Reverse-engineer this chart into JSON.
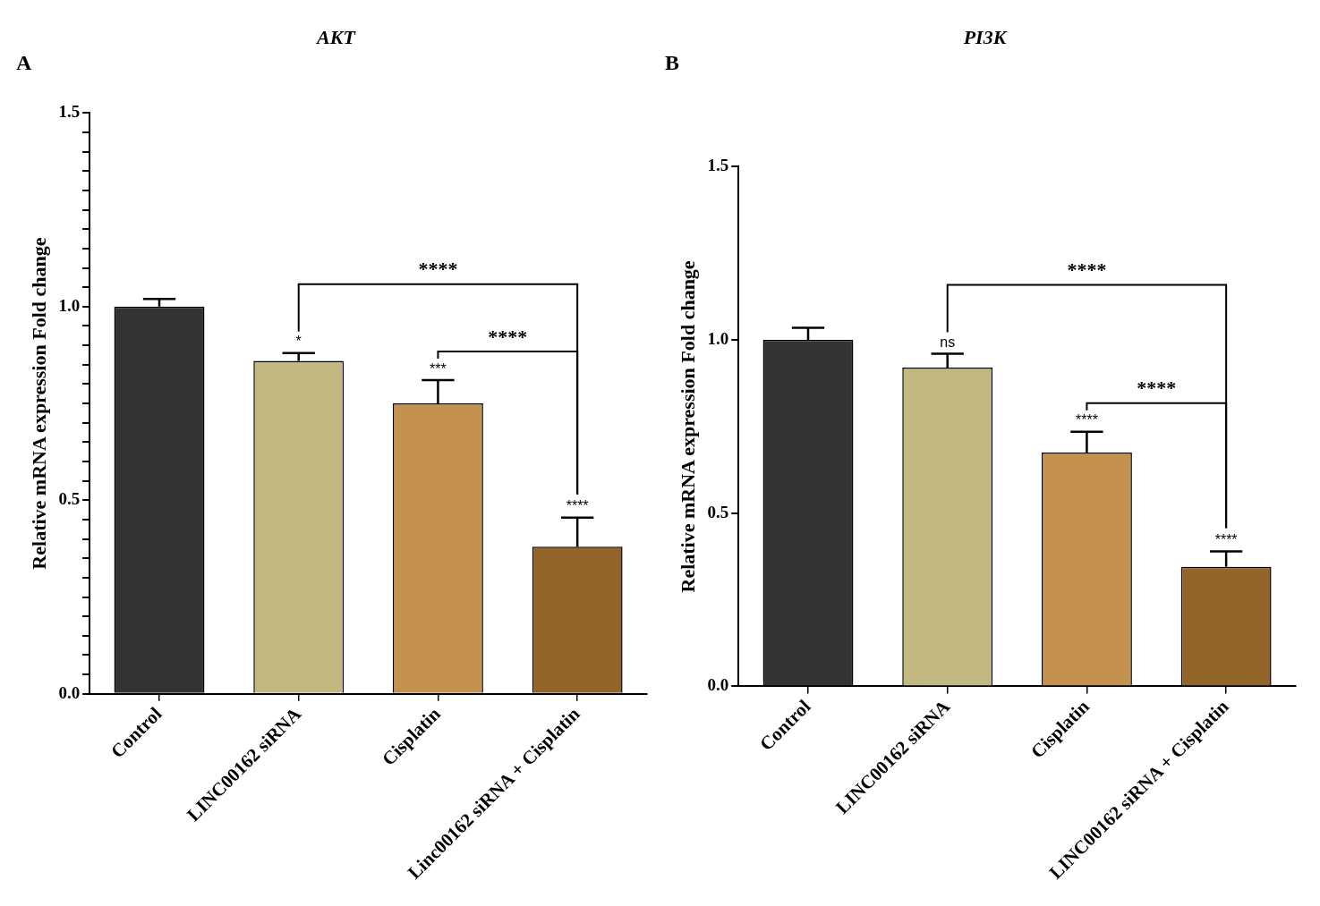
{
  "chart_data": [
    {
      "type": "bar",
      "title": "AKT",
      "ylabel": "Relative mRNA expression Fold change",
      "categories": [
        "Control",
        "LINC00162 siRNA",
        "Cisplatin",
        "Linc00162 siRNA + Cisplatin"
      ],
      "values": [
        1.0,
        0.86,
        0.75,
        0.38
      ],
      "errors": [
        [
          1.0,
          1.02
        ],
        [
          0.86,
          0.88
        ],
        [
          0.75,
          0.81
        ],
        [
          0.38,
          0.455
        ]
      ],
      "colors": [
        "#333333",
        "#c3b980",
        "#c4914f",
        "#93652a"
      ],
      "ylim": [
        0,
        1.5
      ],
      "yticks": [
        {
          "value": 0,
          "label": "0.0"
        },
        {
          "value": 0.05,
          "label": null
        },
        {
          "value": 0.1,
          "label": null
        },
        {
          "value": 0.15,
          "label": null
        },
        {
          "value": 0.2,
          "label": null
        },
        {
          "value": 0.25,
          "label": null
        },
        {
          "value": 0.3,
          "label": null
        },
        {
          "value": 0.35,
          "label": null
        },
        {
          "value": 0.4,
          "label": null
        },
        {
          "value": 0.45,
          "label": null
        },
        {
          "value": 0.5,
          "label": "0.5"
        },
        {
          "value": 0.55,
          "label": null
        },
        {
          "value": 0.6,
          "label": null
        },
        {
          "value": 0.65,
          "label": null
        },
        {
          "value": 0.7,
          "label": null
        },
        {
          "value": 0.75,
          "label": null
        },
        {
          "value": 0.8,
          "label": null
        },
        {
          "value": 0.85,
          "label": null
        },
        {
          "value": 0.9,
          "label": null
        },
        {
          "value": 0.95,
          "label": null
        },
        {
          "value": 1,
          "label": "1.0"
        },
        {
          "value": 1.05,
          "label": null
        },
        {
          "value": 1.1,
          "label": null
        },
        {
          "value": 1.15,
          "label": null
        },
        {
          "value": 1.2,
          "label": null
        },
        {
          "value": 1.25,
          "label": null
        },
        {
          "value": 1.3,
          "label": null
        },
        {
          "value": 1.35,
          "label": null
        },
        {
          "value": 1.4,
          "label": null
        },
        {
          "value": 1.45,
          "label": null
        },
        {
          "value": 1.5,
          "label": "1.5"
        }
      ],
      "grid": false,
      "legend": false,
      "annotations": [
        "A",
        "*",
        "***",
        "****",
        "****",
        "****"
      ]
    },
    {
      "type": "bar",
      "title": "PI3K",
      "ylabel": "Relative mRNA expression Fold change",
      "categories": [
        "Control",
        "LINC00162 siRNA",
        "Cisplatin",
        "LINC00162 siRNA + Cisplatin"
      ],
      "values": [
        1.0,
        0.92,
        0.675,
        0.345
      ],
      "errors": [
        [
          1.0,
          1.035
        ],
        [
          0.92,
          0.96
        ],
        [
          0.675,
          0.735
        ],
        [
          0.345,
          0.39
        ]
      ],
      "colors": [
        "#333333",
        "#c3b980",
        "#c4914f",
        "#93652a"
      ],
      "ylim": [
        0,
        1.5
      ],
      "yticks": [
        {
          "value": 0,
          "label": "0.0"
        },
        {
          "value": 0.5,
          "label": "0.5"
        },
        {
          "value": 1,
          "label": "1.0"
        },
        {
          "value": 1.5,
          "label": "1.5"
        }
      ],
      "grid": false,
      "legend": false,
      "annotations": [
        "B",
        "ns",
        "****",
        "****",
        "****",
        "****"
      ]
    }
  ]
}
